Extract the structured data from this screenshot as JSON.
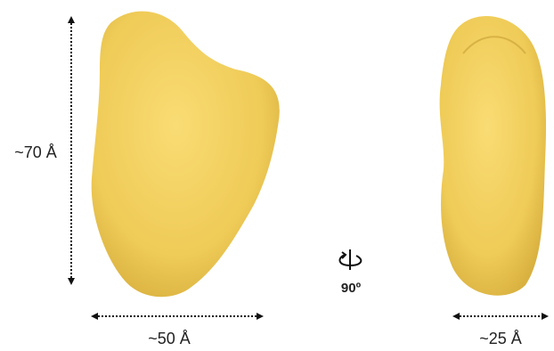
{
  "dimensions": {
    "height": "~70 Å",
    "width": "~50 Å",
    "depth": "~25 Å"
  },
  "rotation": "90º"
}
